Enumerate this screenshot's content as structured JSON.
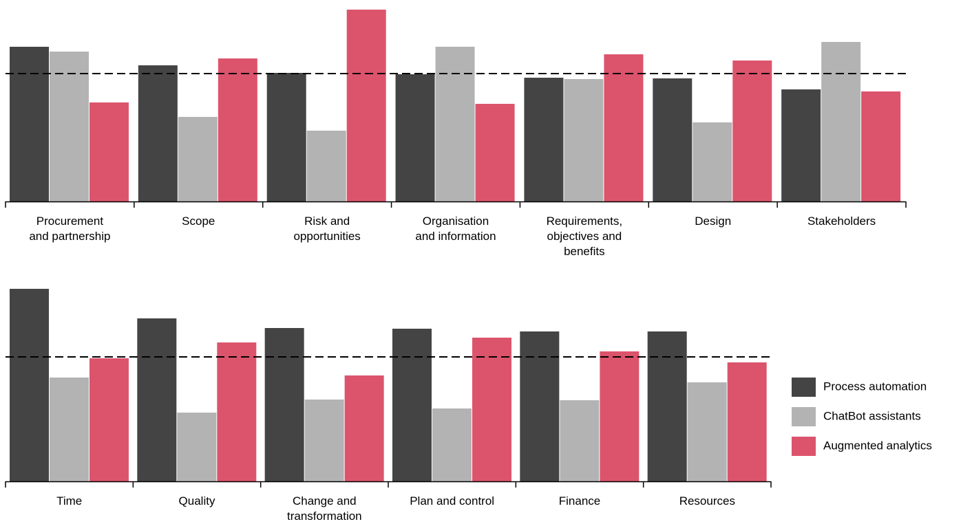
{
  "chart_data": [
    {
      "type": "bar",
      "categories": [
        "Procurement and partnership",
        "Scope",
        "Risk and opportunities",
        "Organisation and information",
        "Requirements, objectives and benefits",
        "Design",
        "Stakeholders"
      ],
      "series": [
        {
          "values": [
            225,
            198,
            187,
            185,
            180,
            179,
            163
          ]
        },
        {
          "values": [
            218,
            123,
            103,
            225,
            178,
            115,
            232
          ]
        },
        {
          "values": [
            144,
            208,
            279,
            142,
            214,
            205,
            160
          ]
        }
      ],
      "reference_line": 186,
      "ylim": [
        0,
        279
      ]
    },
    {
      "type": "bar",
      "categories": [
        "Time",
        "Quality",
        "Change and transformation",
        "Plan and control",
        "Finance",
        "Resources"
      ],
      "series": [
        {
          "name": "Process automation",
          "color": "#444444",
          "values": [
            280,
            237,
            223,
            222,
            218,
            218
          ]
        },
        {
          "name": "ChatBot assistants",
          "color": "#b3b3b3",
          "values": [
            151,
            100,
            119,
            106,
            118,
            144
          ]
        },
        {
          "name": "Augmented analytics",
          "color": "#dc546c",
          "values": [
            179,
            202,
            154,
            209,
            189,
            173
          ]
        }
      ],
      "reference_line": 181,
      "ylim": [
        0,
        280
      ],
      "legend": "right"
    }
  ]
}
